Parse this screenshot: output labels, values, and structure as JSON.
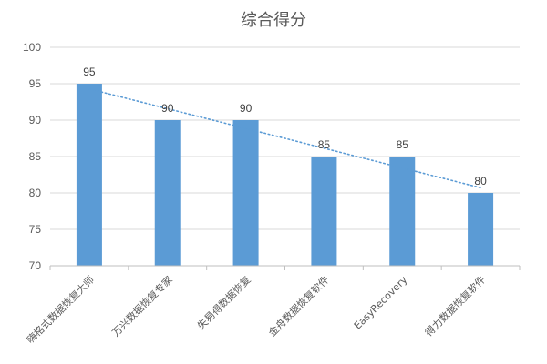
{
  "chart_data": {
    "type": "bar",
    "title": "综合得分",
    "categories": [
      "嗨格式数据恢复大师",
      "万兴数据恢复专家",
      "失易得数据恢复",
      "金舟数据恢复软件",
      "EasyRecovery",
      "得力数据恢复软件"
    ],
    "values": [
      95,
      90,
      90,
      85,
      85,
      80
    ],
    "ylim": [
      70,
      100
    ],
    "yticks": [
      70,
      75,
      80,
      85,
      90,
      95,
      100
    ],
    "grid": true,
    "data_labels": true,
    "trendline": {
      "type": "linear",
      "style": "dotted"
    },
    "colors": {
      "bar": "#5b9bd5",
      "trendline": "#5b9bd5"
    }
  }
}
